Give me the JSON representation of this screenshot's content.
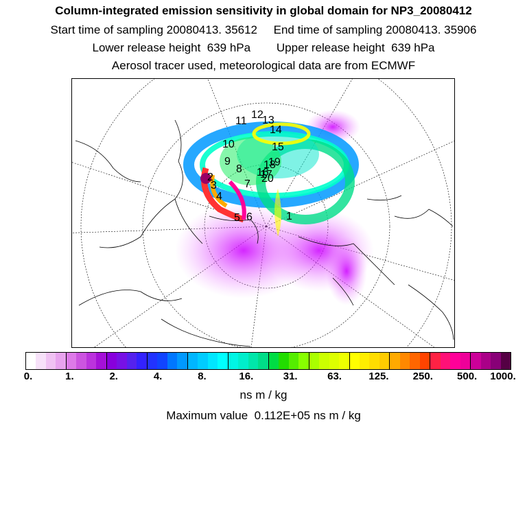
{
  "header": {
    "title": "Column-integrated emission sensitivity in global domain for NP3_20080412",
    "line2": "Start time of sampling 20080413. 35612     End time of sampling 20080413. 35906",
    "line3": "Lower release height  639 hPa        Upper release height  639 hPa",
    "line4": "Aerosol tracer used, meteorological data are from ECMWF"
  },
  "map": {
    "projection": "north-polar-stereographic",
    "track_labels": [
      "1",
      "2",
      "3",
      "4",
      "5",
      "6",
      "7",
      "8",
      "9",
      "10",
      "11",
      "12",
      "13",
      "14",
      "15",
      "16",
      "17",
      "18",
      "19",
      "20"
    ]
  },
  "colorbar": {
    "ticks": [
      "0.",
      "1.",
      "2.",
      "4.",
      "8.",
      "16.",
      "31.",
      "63.",
      "125.",
      "250.",
      "500.",
      "1000."
    ],
    "units": "ns m / kg",
    "colors": [
      "#ffffff",
      "#f7e1f9",
      "#f0c2f3",
      "#e8a3ee",
      "#dd7ae8",
      "#cc55e0",
      "#bb33dd",
      "#a511d8",
      "#8800dd",
      "#7711e5",
      "#5522ee",
      "#3322ff",
      "#2233ff",
      "#1144ff",
      "#0077ff",
      "#0099ff",
      "#00b6ff",
      "#00ccff",
      "#00e6ff",
      "#00ffff",
      "#00f5e5",
      "#00eecc",
      "#00e6aa",
      "#00dd88",
      "#00dd44",
      "#22dd00",
      "#55ee00",
      "#88ff00",
      "#aaff00",
      "#ccff00",
      "#ddff00",
      "#eeff00",
      "#ffff00",
      "#ffee00",
      "#ffdd00",
      "#ffcc00",
      "#ffaa00",
      "#ff8800",
      "#ff6600",
      "#ff4400",
      "#ff2244",
      "#ff1177",
      "#ff0099",
      "#ee0099",
      "#cc0099",
      "#aa0088",
      "#880077",
      "#550044"
    ]
  },
  "footer": {
    "max_label": "Maximum value  0.112E+05 ns m / kg"
  }
}
